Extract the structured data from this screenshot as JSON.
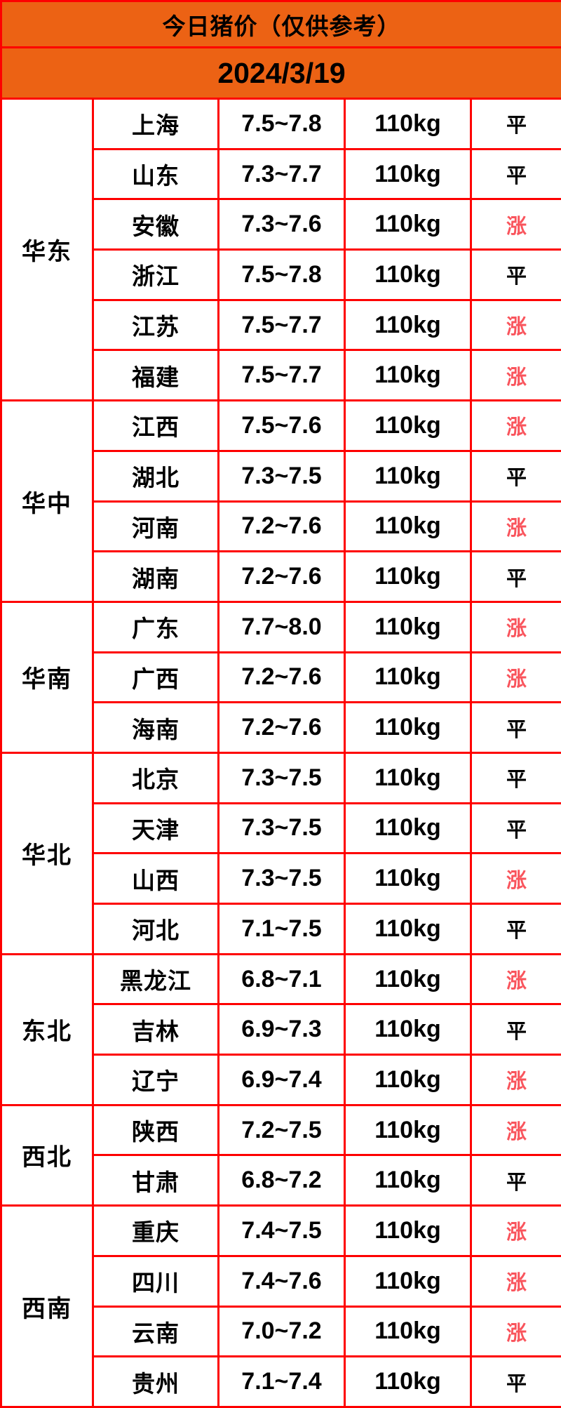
{
  "header": {
    "title": "今日猪价（仅供参考）",
    "date": "2024/3/19"
  },
  "colors": {
    "header_bg": "#EC6214",
    "border": "#FE0000",
    "up_text": "#F9545C",
    "flat_text": "#000000"
  },
  "trend_up_label": "涨",
  "trend_flat_label": "平",
  "chart_data": {
    "type": "table",
    "title": "今日猪价（仅供参考）",
    "date": "2024/3/19",
    "weight_unit": "110kg",
    "groups": [
      {
        "region": "华东",
        "rows": [
          {
            "province": "上海",
            "price": "7.5~7.8",
            "weight": "110kg",
            "trend": "平"
          },
          {
            "province": "山东",
            "price": "7.3~7.7",
            "weight": "110kg",
            "trend": "平"
          },
          {
            "province": "安徽",
            "price": "7.3~7.6",
            "weight": "110kg",
            "trend": "涨"
          },
          {
            "province": "浙江",
            "price": "7.5~7.8",
            "weight": "110kg",
            "trend": "平"
          },
          {
            "province": "江苏",
            "price": "7.5~7.7",
            "weight": "110kg",
            "trend": "涨"
          },
          {
            "province": "福建",
            "price": "7.5~7.7",
            "weight": "110kg",
            "trend": "涨"
          }
        ]
      },
      {
        "region": "华中",
        "rows": [
          {
            "province": "江西",
            "price": "7.5~7.6",
            "weight": "110kg",
            "trend": "涨"
          },
          {
            "province": "湖北",
            "price": "7.3~7.5",
            "weight": "110kg",
            "trend": "平"
          },
          {
            "province": "河南",
            "price": "7.2~7.6",
            "weight": "110kg",
            "trend": "涨"
          },
          {
            "province": "湖南",
            "price": "7.2~7.6",
            "weight": "110kg",
            "trend": "平"
          }
        ]
      },
      {
        "region": "华南",
        "rows": [
          {
            "province": "广东",
            "price": "7.7~8.0",
            "weight": "110kg",
            "trend": "涨"
          },
          {
            "province": "广西",
            "price": "7.2~7.6",
            "weight": "110kg",
            "trend": "涨"
          },
          {
            "province": "海南",
            "price": "7.2~7.6",
            "weight": "110kg",
            "trend": "平"
          }
        ]
      },
      {
        "region": "华北",
        "rows": [
          {
            "province": "北京",
            "price": "7.3~7.5",
            "weight": "110kg",
            "trend": "平"
          },
          {
            "province": "天津",
            "price": "7.3~7.5",
            "weight": "110kg",
            "trend": "平"
          },
          {
            "province": "山西",
            "price": "7.3~7.5",
            "weight": "110kg",
            "trend": "涨"
          },
          {
            "province": "河北",
            "price": "7.1~7.5",
            "weight": "110kg",
            "trend": "平"
          }
        ]
      },
      {
        "region": "东北",
        "rows": [
          {
            "province": "黑龙江",
            "price": "6.8~7.1",
            "weight": "110kg",
            "trend": "涨"
          },
          {
            "province": "吉林",
            "price": "6.9~7.3",
            "weight": "110kg",
            "trend": "平"
          },
          {
            "province": "辽宁",
            "price": "6.9~7.4",
            "weight": "110kg",
            "trend": "涨"
          }
        ]
      },
      {
        "region": "西北",
        "rows": [
          {
            "province": "陕西",
            "price": "7.2~7.5",
            "weight": "110kg",
            "trend": "涨"
          },
          {
            "province": "甘肃",
            "price": "6.8~7.2",
            "weight": "110kg",
            "trend": "平"
          }
        ]
      },
      {
        "region": "西南",
        "rows": [
          {
            "province": "重庆",
            "price": "7.4~7.5",
            "weight": "110kg",
            "trend": "涨"
          },
          {
            "province": "四川",
            "price": "7.4~7.6",
            "weight": "110kg",
            "trend": "涨"
          },
          {
            "province": "云南",
            "price": "7.0~7.2",
            "weight": "110kg",
            "trend": "涨"
          },
          {
            "province": "贵州",
            "price": "7.1~7.4",
            "weight": "110kg",
            "trend": "平"
          }
        ]
      }
    ]
  }
}
